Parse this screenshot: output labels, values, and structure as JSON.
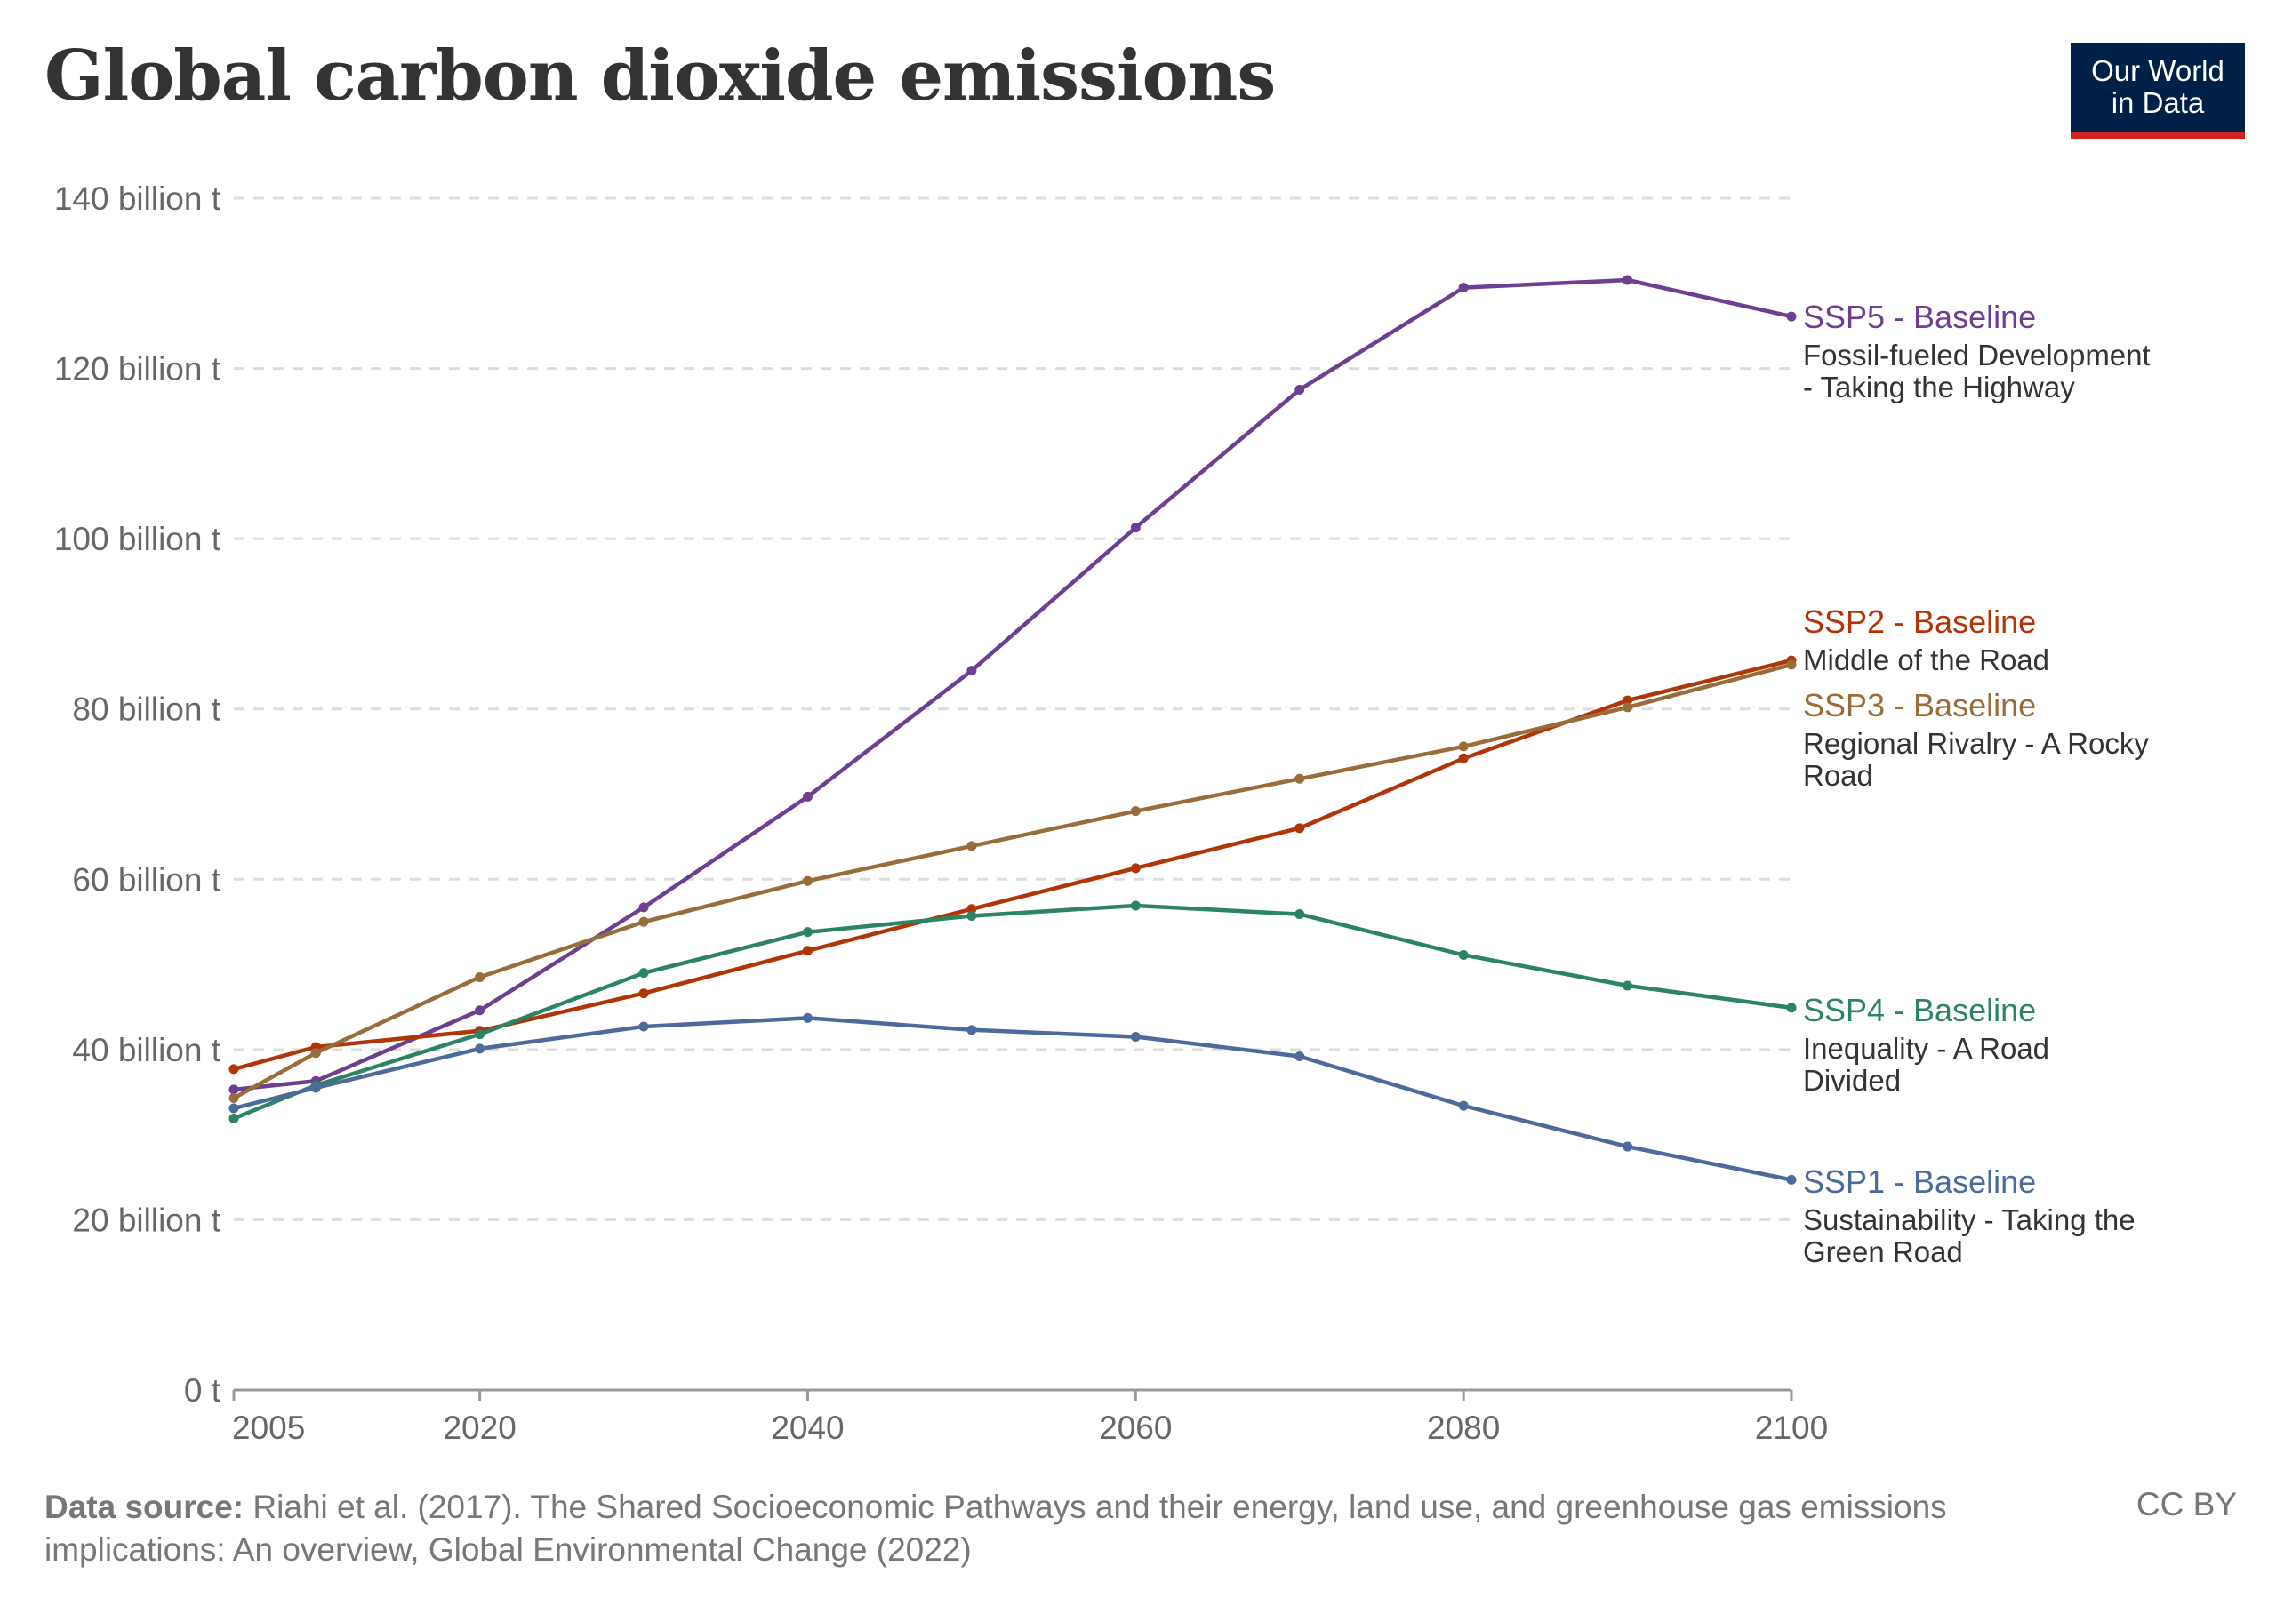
{
  "title": "Global carbon dioxide emissions",
  "logo": {
    "line1": "Our World",
    "line2": "in Data"
  },
  "footer": {
    "source_label": "Data source:",
    "source_text": "Riahi et al. (2017). The Shared Socioeconomic Pathways and their energy, land use, and greenhouse gas emissions implications: An overview, Global Environmental Change (2022)",
    "license": "CC BY"
  },
  "chart_data": {
    "type": "line",
    "title": "Global carbon dioxide emissions",
    "x": [
      2005,
      2010,
      2020,
      2030,
      2040,
      2050,
      2060,
      2070,
      2080,
      2090,
      2100
    ],
    "xlim": [
      2005,
      2100
    ],
    "ylim": [
      0,
      140
    ],
    "x_ticks": [
      "2005",
      "2020",
      "2040",
      "2060",
      "2080",
      "2100"
    ],
    "y_ticks": [
      "0 t",
      "20 billion t",
      "40 billion t",
      "60 billion t",
      "80 billion t",
      "100 billion t",
      "120 billion t",
      "140 billion t"
    ],
    "y_unit": "billion t",
    "grid": "horizontal dashed",
    "legend": "right (inline labels)",
    "series": [
      {
        "name": "SSP5 - Baseline",
        "subtitle": [
          "Fossil-fueled Development",
          "- Taking the Highway"
        ],
        "color": "#6D3E91",
        "values": [
          35.3,
          36.3,
          44.6,
          56.7,
          69.7,
          84.5,
          101.3,
          117.5,
          129.5,
          130.4,
          126.1
        ]
      },
      {
        "name": "SSP2 - Baseline",
        "subtitle": [
          "Middle of the Road"
        ],
        "color": "#B13507",
        "values": [
          37.7,
          40.3,
          42.2,
          46.6,
          51.6,
          56.5,
          61.3,
          66.0,
          74.2,
          81.0,
          85.7
        ]
      },
      {
        "name": "SSP3 - Baseline",
        "subtitle": [
          "Regional Rivalry - A Rocky",
          "Road"
        ],
        "color": "#996D39",
        "values": [
          34.3,
          39.6,
          48.5,
          55.0,
          59.8,
          63.9,
          68.0,
          71.8,
          75.6,
          80.2,
          85.2
        ]
      },
      {
        "name": "SSP4 - Baseline",
        "subtitle": [
          "Inequality - A Road",
          "Divided"
        ],
        "color": "#2C8465",
        "values": [
          31.9,
          35.8,
          41.8,
          49.0,
          53.8,
          55.7,
          56.9,
          55.9,
          51.1,
          47.5,
          44.9
        ]
      },
      {
        "name": "SSP1 - Baseline",
        "subtitle": [
          "Sustainability - Taking the",
          "Green Road"
        ],
        "color": "#4C6A9C",
        "values": [
          33.1,
          35.5,
          40.1,
          42.7,
          43.7,
          42.3,
          41.5,
          39.2,
          33.4,
          28.6,
          24.7
        ]
      }
    ]
  }
}
